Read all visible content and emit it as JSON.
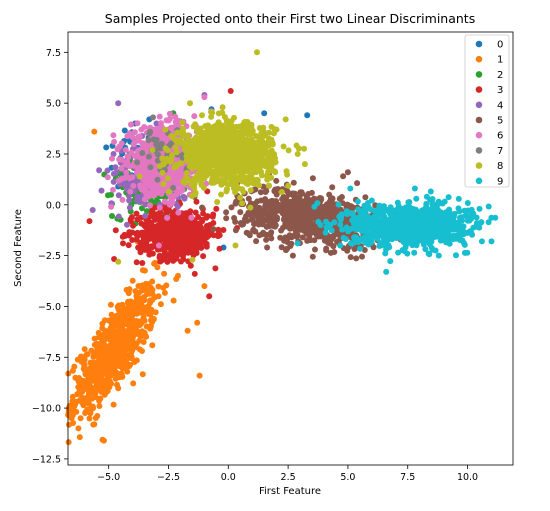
{
  "chart_data": {
    "type": "scatter",
    "title": "Samples Projected onto their First two Linear Discriminants",
    "xlabel": "First Feature",
    "ylabel": "Second Feature",
    "xlim": [
      -6.7,
      11.9
    ],
    "ylim": [
      -12.8,
      8.5
    ],
    "x_ticks": [
      -5.0,
      -2.5,
      0.0,
      2.5,
      5.0,
      7.5,
      10.0
    ],
    "x_tick_labels": [
      "−5.0",
      "−2.5",
      "0.0",
      "2.5",
      "5.0",
      "7.5",
      "10.0"
    ],
    "y_ticks": [
      -12.5,
      -10.0,
      -7.5,
      -5.0,
      -2.5,
      0.0,
      2.5,
      5.0,
      7.5
    ],
    "y_tick_labels": [
      "−12.5",
      "−10.0",
      "−7.5",
      "−5.0",
      "−2.5",
      "0.0",
      "2.5",
      "5.0",
      "7.5"
    ],
    "grid": false,
    "legend_position": "top-right",
    "series": [
      {
        "name": "0",
        "color": "#1f77b4",
        "center": [
          -4.0,
          2.5
        ],
        "spread": [
          0.6,
          0.8
        ],
        "count": 40,
        "points": [
          [
            -3.9,
            4.0
          ],
          [
            -3.3,
            4.2
          ],
          [
            -4.1,
            3.1
          ],
          [
            -2.3,
            3.4
          ],
          [
            1.5,
            4.5
          ],
          [
            3.3,
            4.4
          ],
          [
            -0.2,
            -2.1
          ],
          [
            -4.6,
            0.9
          ],
          [
            -0.7,
            4.7
          ]
        ]
      },
      {
        "name": "1",
        "color": "#ff7f0e",
        "center": [
          -4.8,
          -7.2
        ],
        "spread": [
          0.9,
          1.6
        ],
        "count": 700,
        "points": [
          [
            -5.2,
            -11.6
          ],
          [
            -5.6,
            -10.8
          ],
          [
            -1.2,
            -8.4
          ],
          [
            -1.0,
            -4.0
          ],
          [
            -1.3,
            -5.8
          ],
          [
            -1.7,
            -6.2
          ],
          [
            -5.6,
            3.6
          ],
          [
            -3.1,
            -2.9
          ],
          [
            -6.0,
            -7.1
          ],
          [
            -3.8,
            -1.8
          ]
        ]
      },
      {
        "name": "2",
        "color": "#2ca02c",
        "center": [
          -3.4,
          0.8
        ],
        "spread": [
          0.7,
          0.7
        ],
        "count": 140,
        "points": [
          [
            -2.0,
            4.1
          ],
          [
            -3.7,
            2.0
          ],
          [
            -1.0,
            -1.7
          ],
          [
            -4.7,
            1.3
          ],
          [
            -2.3,
            4.5
          ]
        ]
      },
      {
        "name": "3",
        "color": "#d62728",
        "center": [
          -2.2,
          -1.4
        ],
        "spread": [
          0.8,
          0.6
        ],
        "count": 600,
        "points": [
          [
            0.1,
            5.6
          ],
          [
            -5.8,
            -0.8
          ],
          [
            -0.8,
            -4.5
          ],
          [
            -1.4,
            -3.4
          ],
          [
            -4.4,
            -1.9
          ],
          [
            -0.5,
            -0.2
          ]
        ]
      },
      {
        "name": "4",
        "color": "#9467bd",
        "center": [
          -3.3,
          1.4
        ],
        "spread": [
          0.8,
          0.9
        ],
        "count": 150,
        "points": [
          [
            -5.3,
            0.7
          ],
          [
            -5.4,
            1.7
          ],
          [
            -4.6,
            5.0
          ],
          [
            -3.0,
            4.0
          ],
          [
            -1.0,
            5.4
          ],
          [
            -4.8,
            2.5
          ]
        ]
      },
      {
        "name": "5",
        "color": "#8c564b",
        "center": [
          3.4,
          -0.6
        ],
        "spread": [
          1.5,
          0.7
        ],
        "count": 700,
        "points": [
          [
            5.0,
            1.6
          ],
          [
            4.8,
            1.4
          ],
          [
            2.7,
            -2.5
          ],
          [
            5.3,
            -2.0
          ],
          [
            1.3,
            -1.5
          ],
          [
            0.9,
            -1.5
          ],
          [
            4.6,
            -1.8
          ]
        ]
      },
      {
        "name": "6",
        "color": "#e377c2",
        "center": [
          -2.7,
          2.1
        ],
        "spread": [
          0.7,
          0.8
        ],
        "count": 900,
        "points": [
          [
            -1.0,
            5.3
          ],
          [
            -0.7,
            4.6
          ],
          [
            -4.9,
            -0.1
          ],
          [
            -2.9,
            -2.0
          ],
          [
            -1.0,
            2.0
          ]
        ]
      },
      {
        "name": "7",
        "color": "#7f7f7f",
        "center": [
          -2.7,
          2.5
        ],
        "spread": [
          0.5,
          0.6
        ],
        "count": 40,
        "points": [
          [
            -3.3,
            3.5
          ]
        ]
      },
      {
        "name": "8",
        "color": "#bcbd22",
        "center": [
          -0.1,
          2.5
        ],
        "spread": [
          1.0,
          0.75
        ],
        "count": 1000,
        "points": [
          [
            1.2,
            7.5
          ],
          [
            -1.1,
            4.4
          ],
          [
            2.4,
            4.2
          ],
          [
            2.9,
            2.5
          ],
          [
            3.2,
            2.0
          ],
          [
            -1.5,
            -2.7
          ],
          [
            -4.6,
            -2.8
          ],
          [
            0.3,
            -2.0
          ],
          [
            1.8,
            3.2
          ],
          [
            -1.6,
            5.0
          ]
        ]
      },
      {
        "name": "9",
        "color": "#17becf",
        "center": [
          7.6,
          -1.0
        ],
        "spread": [
          1.2,
          0.5
        ],
        "count": 1000,
        "points": [
          [
            11.0,
            -1.8
          ],
          [
            10.6,
            -1.8
          ],
          [
            10.5,
            -0.2
          ],
          [
            6.6,
            -3.3
          ],
          [
            7.8,
            0.8
          ],
          [
            8.3,
            0.4
          ],
          [
            2.9,
            -1.9
          ],
          [
            3.6,
            -0.1
          ],
          [
            5.1,
            0.8
          ],
          [
            8.8,
            -2.5
          ]
        ]
      }
    ]
  }
}
